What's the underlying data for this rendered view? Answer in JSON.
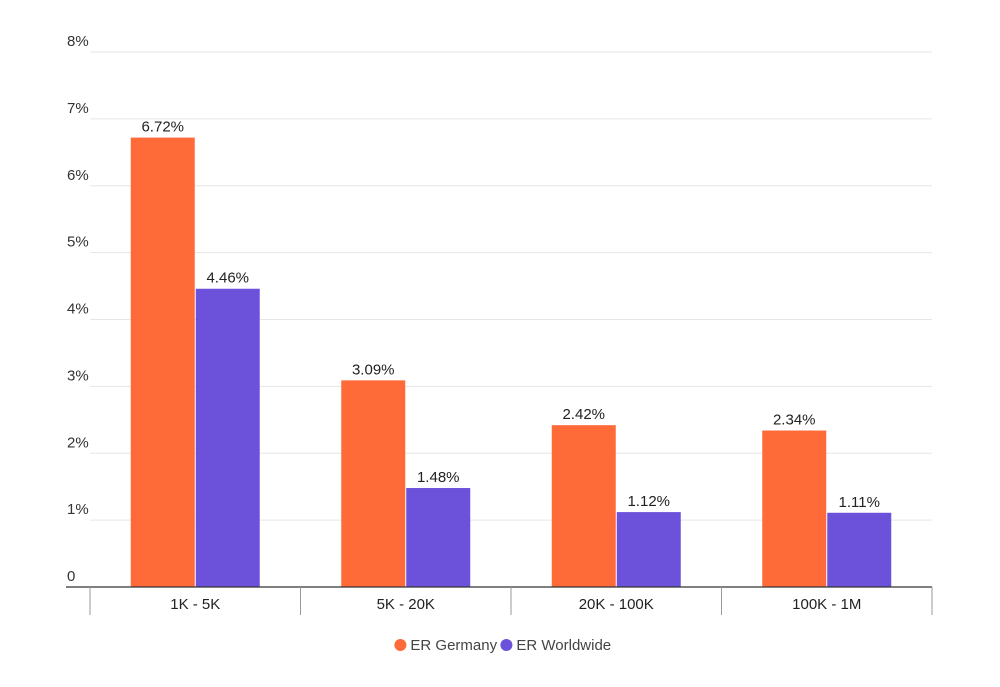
{
  "chart_data": {
    "type": "bar",
    "categories": [
      "1K - 5K",
      "5K - 20K",
      "20K - 100K",
      "100K - 1M"
    ],
    "series": [
      {
        "name": "ER Germany",
        "values": [
          6.72,
          3.09,
          2.42,
          2.34
        ],
        "labels": [
          "6.72%",
          "3.09%",
          "2.42%",
          "2.34%"
        ],
        "color": "#FF6A39"
      },
      {
        "name": "ER Worldwide",
        "values": [
          4.46,
          1.48,
          1.12,
          1.11
        ],
        "labels": [
          "4.46%",
          "1.48%",
          "1.12%",
          "1.11%"
        ],
        "color": "#6C52DB"
      }
    ],
    "yticks": [
      {
        "value": 0,
        "label": "0"
      },
      {
        "value": 1,
        "label": "1%"
      },
      {
        "value": 2,
        "label": "2%"
      },
      {
        "value": 3,
        "label": "3%"
      },
      {
        "value": 4,
        "label": "4%"
      },
      {
        "value": 5,
        "label": "5%"
      },
      {
        "value": 6,
        "label": "6%"
      },
      {
        "value": 7,
        "label": "7%"
      },
      {
        "value": 8,
        "label": "8%"
      }
    ],
    "ylim": [
      0,
      8
    ],
    "grid": true,
    "legend_position": "bottom-center",
    "title": "",
    "xlabel": "",
    "ylabel": ""
  }
}
